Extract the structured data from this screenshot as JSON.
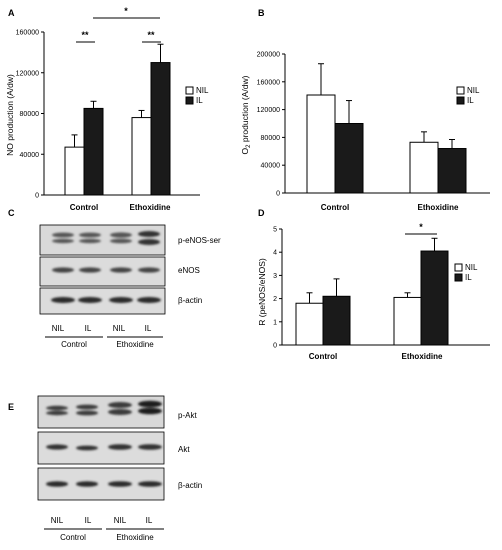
{
  "panel_letters": {
    "a": "A",
    "b": "B",
    "c": "C",
    "d": "D",
    "e": "E"
  },
  "legend_labels": {
    "nil": "NIL",
    "il": "IL"
  },
  "colors": {
    "nil": "#ffffff",
    "il": "#1a1a1a",
    "axis": "#000000"
  },
  "chart_data": [
    {
      "panel": "A",
      "type": "bar",
      "categories": [
        "Control",
        "Ethoxidine"
      ],
      "series": [
        {
          "name": "NIL",
          "values": [
            47000,
            76000
          ],
          "errors": [
            12000,
            7000
          ]
        },
        {
          "name": "IL",
          "values": [
            85000,
            130000
          ],
          "errors": [
            7000,
            18000
          ]
        }
      ],
      "ylabel": "NO production (A/dw)",
      "ylim": [
        0,
        160000
      ],
      "yticks": [
        "0",
        "40000",
        "80000",
        "120000",
        "160000"
      ],
      "significance": [
        "**",
        "**",
        "*"
      ],
      "legend": "right"
    },
    {
      "panel": "B",
      "type": "bar",
      "categories": [
        "Control",
        "Ethoxidine"
      ],
      "series": [
        {
          "name": "NIL",
          "values": [
            141000,
            73000
          ],
          "errors": [
            45000,
            15000
          ]
        },
        {
          "name": "IL",
          "values": [
            100000,
            64000
          ],
          "errors": [
            33000,
            13000
          ]
        }
      ],
      "ylabel_main": "O",
      "ylabel_sub": "2",
      "ylabel_rest": " production (A/dw)",
      "ylim": [
        0,
        200000
      ],
      "yticks": [
        "0",
        "40000",
        "80000",
        "120000",
        "160000",
        "200000"
      ],
      "legend": "right"
    },
    {
      "panel": "D",
      "type": "bar",
      "categories": [
        "Control",
        "Ethoxidine"
      ],
      "series": [
        {
          "name": "NIL",
          "values": [
            1.8,
            2.05
          ],
          "errors": [
            0.45,
            0.2
          ]
        },
        {
          "name": "IL",
          "values": [
            2.1,
            4.05
          ],
          "errors": [
            0.75,
            0.55
          ]
        }
      ],
      "ylabel": "R (peNOS/eNOS)",
      "ylim": [
        0,
        5
      ],
      "yticks": [
        "0",
        "1",
        "2",
        "3",
        "4",
        "5"
      ],
      "significance": [
        "*"
      ],
      "legend": "right"
    }
  ],
  "blot_c": {
    "bands": [
      "p-eNOS-ser",
      "eNOS",
      "β-actin"
    ],
    "lanes": [
      "NIL",
      "IL",
      "NIL",
      "IL"
    ],
    "groups": [
      "Control",
      "Ethoxidine"
    ]
  },
  "blot_e": {
    "bands": [
      "p-Akt",
      "Akt",
      "β-actin"
    ],
    "lanes": [
      "NIL",
      "IL",
      "NIL",
      "IL"
    ],
    "groups": [
      "Control",
      "Ethoxidine"
    ]
  }
}
